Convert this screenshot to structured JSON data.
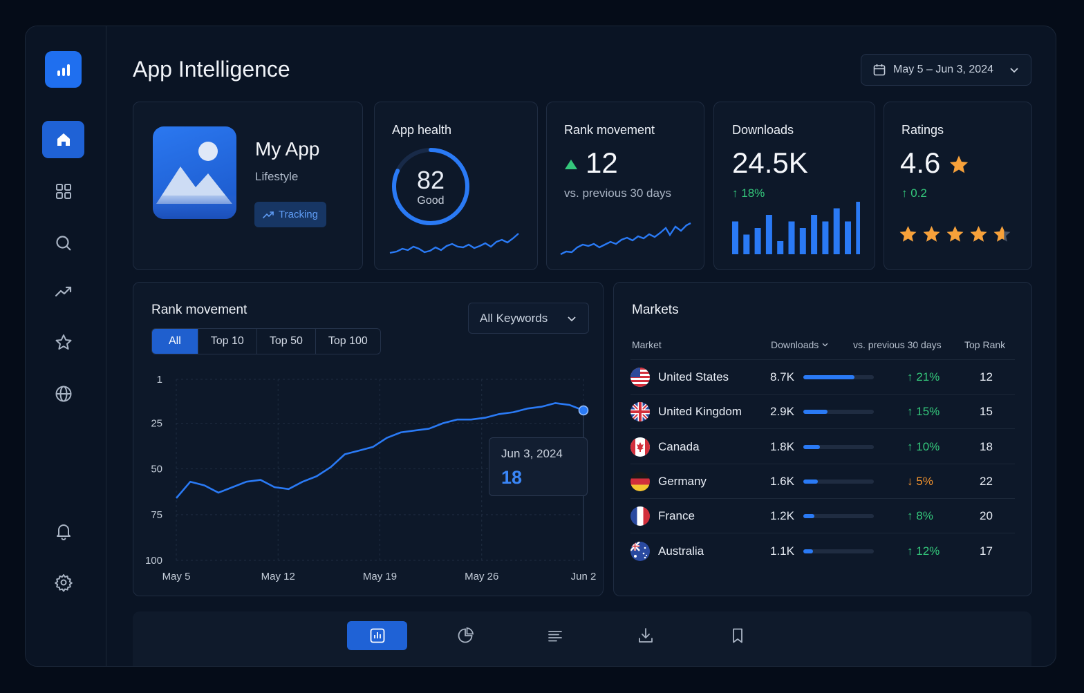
{
  "header": {
    "title": "App Intelligence",
    "date_range": "May 5 – Jun 3, 2024"
  },
  "app": {
    "name": "My App",
    "category": "Lifestyle",
    "tracking_label": "Tracking"
  },
  "health": {
    "title": "App health",
    "score": "82",
    "label": "Good",
    "score_fraction": 0.82
  },
  "rank_card": {
    "title": "Rank movement",
    "value": "12",
    "sub": "vs. previous 30 days"
  },
  "downloads": {
    "title": "Downloads",
    "value": "24.5K",
    "change": "18%",
    "bars": [
      5,
      3,
      4,
      6,
      2,
      5,
      4,
      6,
      5,
      7,
      5,
      8
    ]
  },
  "ratings": {
    "title": "Ratings",
    "value": "4.6",
    "change": "0.2",
    "stars": 4.6
  },
  "rank_chart": {
    "title": "Rank movement",
    "tabs": [
      "All",
      "Top 10",
      "Top 50",
      "Top 100"
    ],
    "keyword_select": "All Keywords",
    "tooltip_date": "Jun 3, 2024",
    "tooltip_value": "18"
  },
  "chart_data": {
    "type": "line",
    "title": "Rank movement",
    "x_ticks": [
      "May 5",
      "May 12",
      "May 19",
      "May 26",
      "Jun 2"
    ],
    "y_ticks": [
      "1",
      "25",
      "50",
      "75",
      "100"
    ],
    "ylim": [
      1,
      100
    ],
    "y_inverted": true,
    "x": [
      "May 5",
      "May 6",
      "May 7",
      "May 8",
      "May 9",
      "May 10",
      "May 11",
      "May 12",
      "May 13",
      "May 14",
      "May 15",
      "May 16",
      "May 17",
      "May 18",
      "May 19",
      "May 20",
      "May 21",
      "May 22",
      "May 23",
      "May 24",
      "May 25",
      "May 26",
      "May 27",
      "May 28",
      "May 29",
      "May 30",
      "May 31",
      "Jun 1",
      "Jun 2",
      "Jun 3"
    ],
    "values": [
      66,
      57,
      59,
      63,
      60,
      57,
      56,
      60,
      61,
      57,
      54,
      49,
      42,
      40,
      38,
      33,
      30,
      29,
      28,
      25,
      23,
      23,
      22,
      20,
      19,
      17,
      16,
      14,
      15,
      18
    ]
  },
  "markets": {
    "title": "Markets",
    "headers": {
      "market": "Market",
      "downloads": "Downloads",
      "change": "vs. previous 30 days",
      "rank": "Top Rank"
    },
    "rows": [
      {
        "name": "United States",
        "downloads": "8.7K",
        "share": 0.73,
        "change": "21%",
        "dir": "up",
        "rank": "12"
      },
      {
        "name": "United Kingdom",
        "downloads": "2.9K",
        "share": 0.34,
        "change": "15%",
        "dir": "up",
        "rank": "15"
      },
      {
        "name": "Canada",
        "downloads": "1.8K",
        "share": 0.24,
        "change": "10%",
        "dir": "up",
        "rank": "18"
      },
      {
        "name": "Germany",
        "downloads": "1.6K",
        "share": 0.21,
        "change": "5%",
        "dir": "down",
        "rank": "22"
      },
      {
        "name": "France",
        "downloads": "1.2K",
        "share": 0.16,
        "change": "8%",
        "dir": "up",
        "rank": "20"
      },
      {
        "name": "Australia",
        "downloads": "1.1K",
        "share": 0.14,
        "change": "12%",
        "dir": "up",
        "rank": "17"
      }
    ]
  },
  "colors": {
    "accent": "#1f6fef",
    "line": "#2a7af5",
    "up": "#34c77b",
    "down": "#f0922e",
    "star": "#f7a13a"
  },
  "icons": {
    "sidebar": [
      "home-icon",
      "grid-icon",
      "search-icon",
      "trending-icon",
      "star-icon",
      "globe-icon",
      "bell-icon",
      "gear-icon"
    ],
    "bottom": [
      "bar-chart-icon",
      "pie-chart-icon",
      "list-icon",
      "download-icon",
      "bookmark-icon"
    ]
  }
}
